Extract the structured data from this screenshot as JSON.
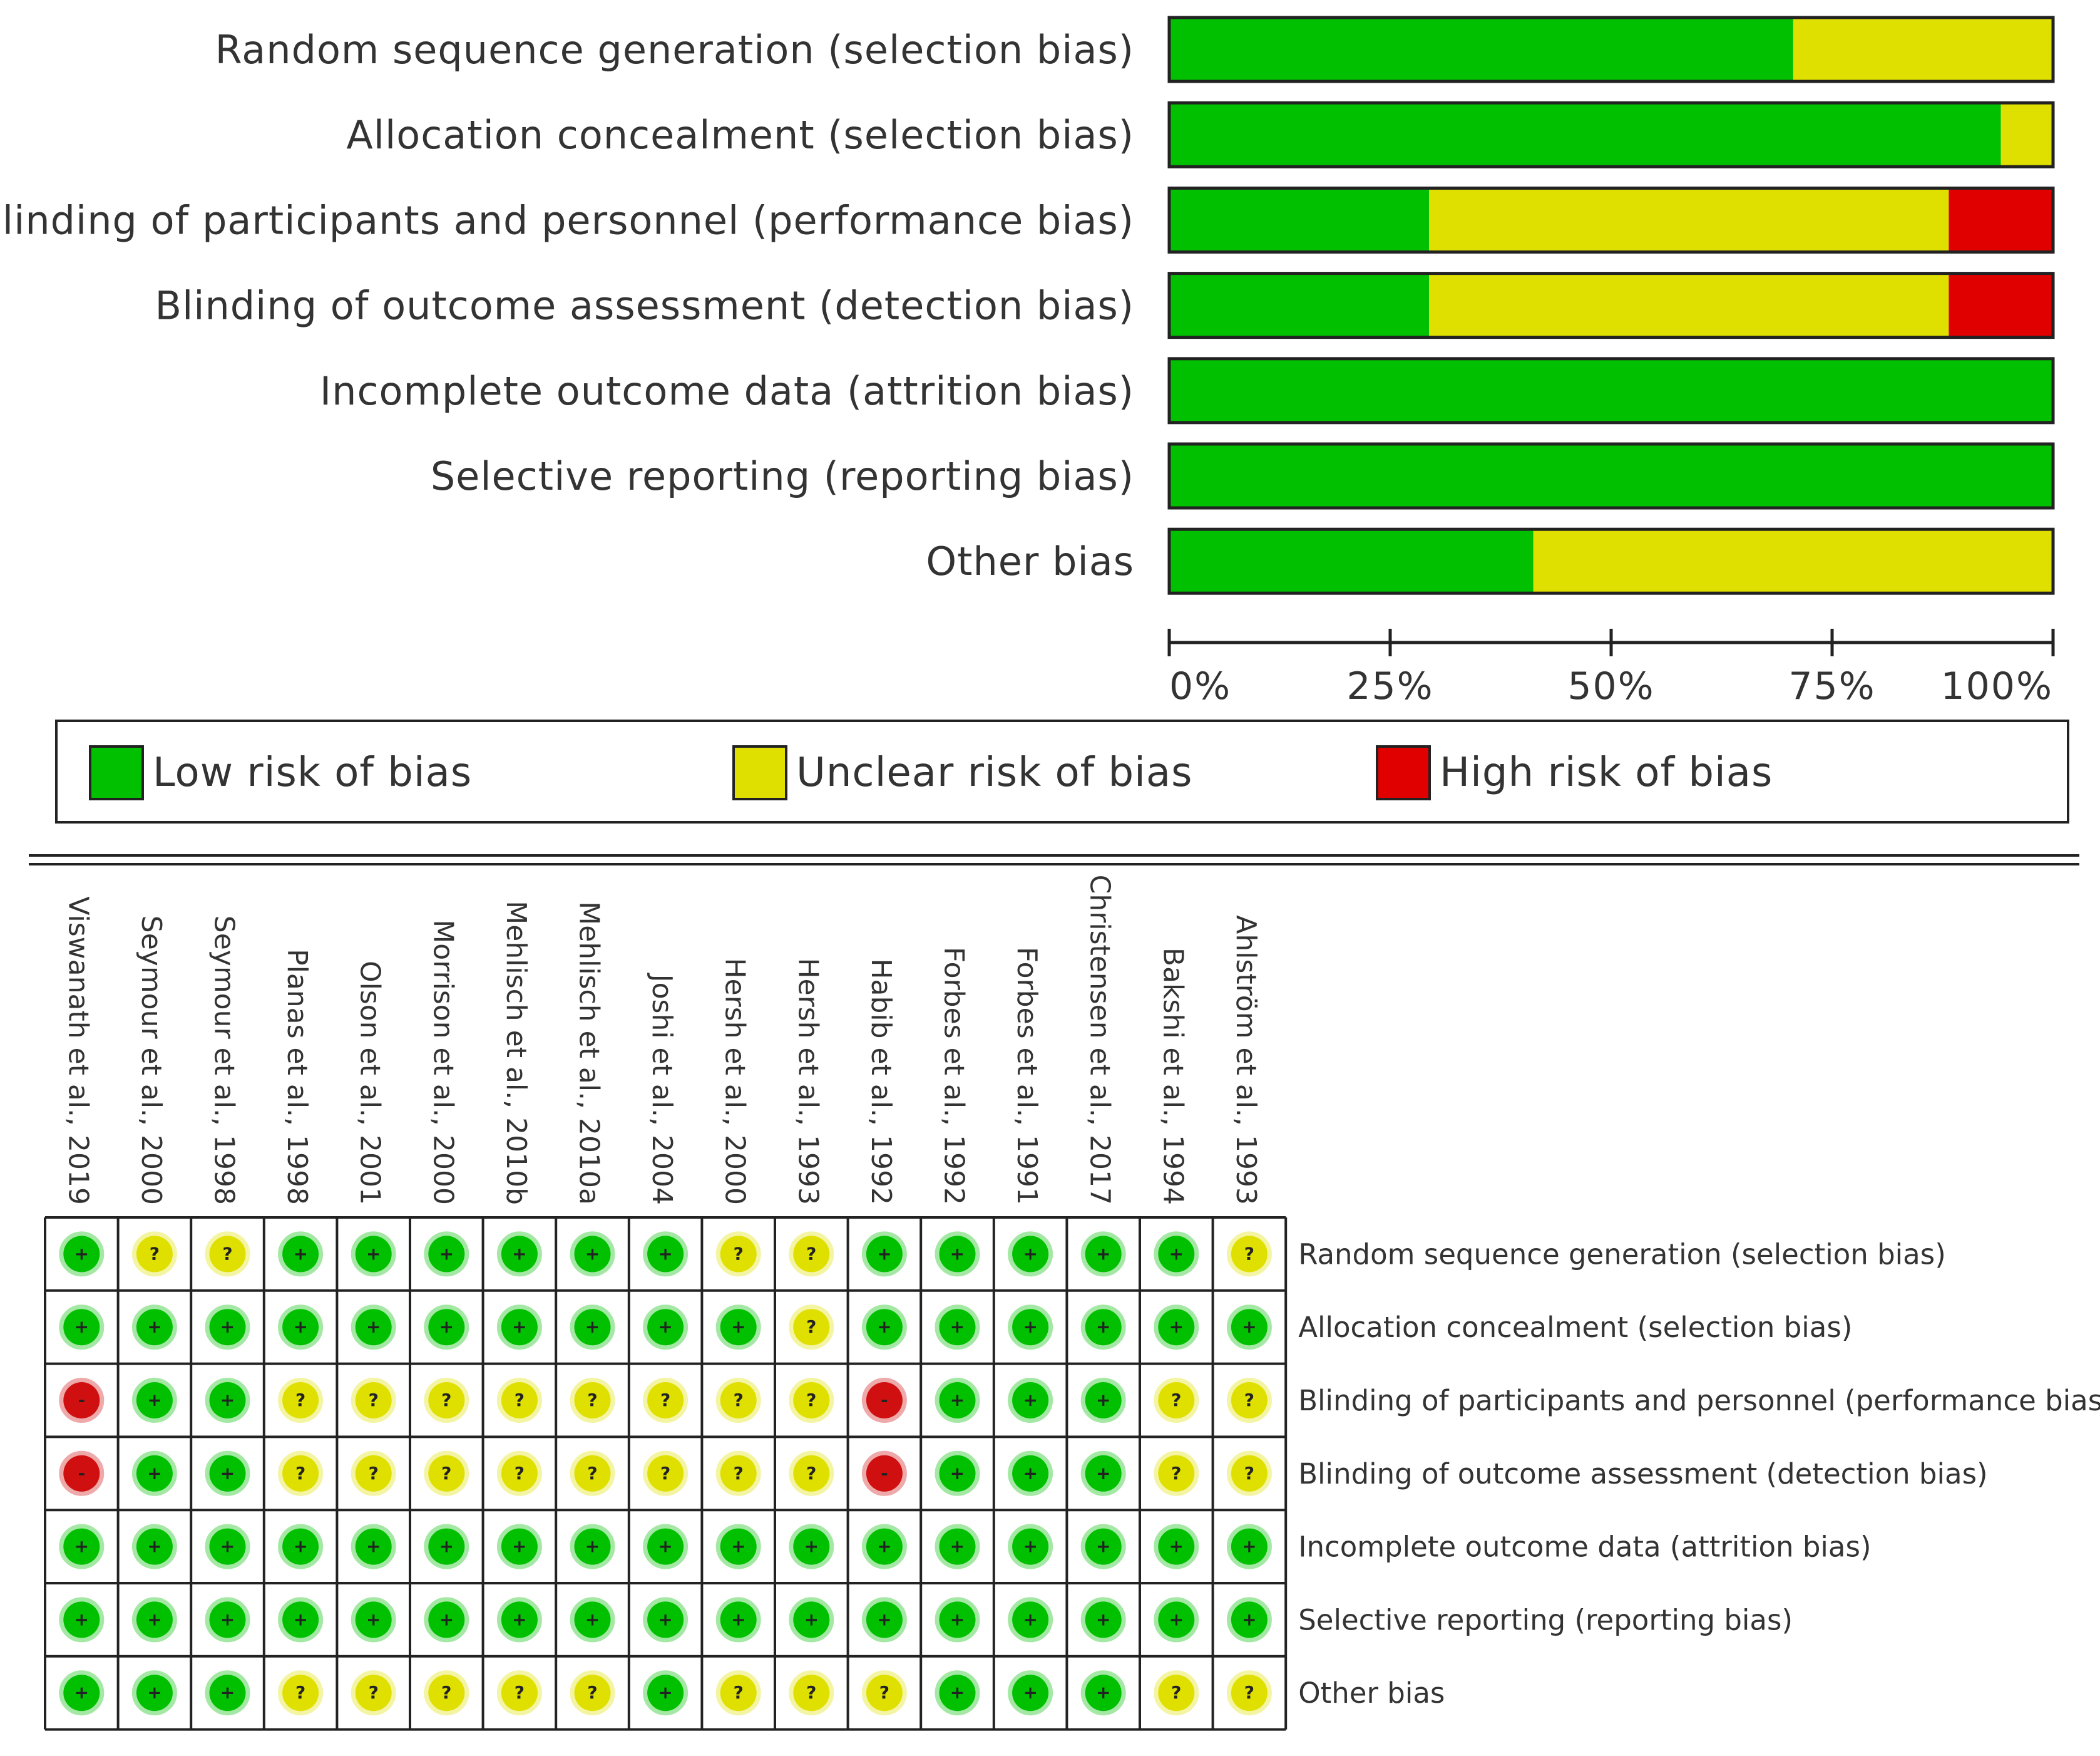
{
  "chart_data": [
    {
      "type": "bar",
      "orientation": "horizontal",
      "stacked": true,
      "normalized": "percent",
      "categories": [
        "Random sequence generation (selection bias)",
        "Allocation concealment (selection bias)",
        "Blinding of participants and personnel (performance bias)",
        "Blinding of outcome assessment (detection bias)",
        "Incomplete outcome data (attrition bias)",
        "Selective reporting (reporting bias)",
        "Other bias"
      ],
      "series": [
        {
          "name": "Low risk of bias",
          "color": "#00c000",
          "values": [
            70.6,
            94.1,
            29.4,
            29.4,
            100,
            100,
            41.2
          ]
        },
        {
          "name": "Unclear risk of bias",
          "color": "#e0e000",
          "values": [
            29.4,
            5.9,
            58.8,
            58.8,
            0,
            0,
            58.8
          ]
        },
        {
          "name": "High risk of bias",
          "color": "#e00000",
          "values": [
            0,
            0,
            11.8,
            11.8,
            0,
            0,
            0
          ]
        }
      ],
      "xlim": [
        0,
        100
      ],
      "xticks": [
        "0%",
        "25%",
        "50%",
        "75%",
        "100%"
      ],
      "legend": "bottom"
    },
    {
      "type": "table",
      "studies": [
        "Viswanath et al., 2019",
        "Seymour et al., 2000",
        "Seymour et al., 1998",
        "Planas et al., 1998",
        "Olson et al., 2001",
        "Morrison et al., 2000",
        "Mehlisch et al., 2010b",
        "Mehlisch et al., 2010a",
        "Joshi et al., 2004",
        "Hersh et al., 2000",
        "Hersh et al., 1993",
        "Habib et al., 1992",
        "Forbes et al., 1992",
        "Forbes et al., 1991",
        "Christensen et al., 2017",
        "Bakshi et al., 1994",
        "Ahlström et al., 1993"
      ],
      "domains": [
        "Random sequence generation (selection bias)",
        "Allocation concealment (selection bias)",
        "Blinding of participants and personnel (performance bias)",
        "Blinding of outcome assessment (detection bias)",
        "Incomplete outcome data (attrition bias)",
        "Selective reporting (reporting bias)",
        "Other bias"
      ],
      "judgements": [
        [
          "+",
          "?",
          "?",
          "+",
          "+",
          "+",
          "+",
          "+",
          "+",
          "?",
          "?",
          "+",
          "+",
          "+",
          "+",
          "+",
          "?"
        ],
        [
          "+",
          "+",
          "+",
          "+",
          "+",
          "+",
          "+",
          "+",
          "+",
          "+",
          "?",
          "+",
          "+",
          "+",
          "+",
          "+",
          "+"
        ],
        [
          "-",
          "+",
          "+",
          "?",
          "?",
          "?",
          "?",
          "?",
          "?",
          "?",
          "?",
          "-",
          "+",
          "+",
          "+",
          "?",
          "?"
        ],
        [
          "-",
          "+",
          "+",
          "?",
          "?",
          "?",
          "?",
          "?",
          "?",
          "?",
          "?",
          "-",
          "+",
          "+",
          "+",
          "?",
          "?"
        ],
        [
          "+",
          "+",
          "+",
          "+",
          "+",
          "+",
          "+",
          "+",
          "+",
          "+",
          "+",
          "+",
          "+",
          "+",
          "+",
          "+",
          "+"
        ],
        [
          "+",
          "+",
          "+",
          "+",
          "+",
          "+",
          "+",
          "+",
          "+",
          "+",
          "+",
          "+",
          "+",
          "+",
          "+",
          "+",
          "+"
        ],
        [
          "+",
          "+",
          "+",
          "?",
          "?",
          "?",
          "?",
          "?",
          "+",
          "?",
          "?",
          "?",
          "+",
          "+",
          "+",
          "?",
          "?"
        ]
      ],
      "symbol_colors": {
        "+": "#00c000",
        "?": "#e0e000",
        "-": "#d01010"
      }
    }
  ]
}
